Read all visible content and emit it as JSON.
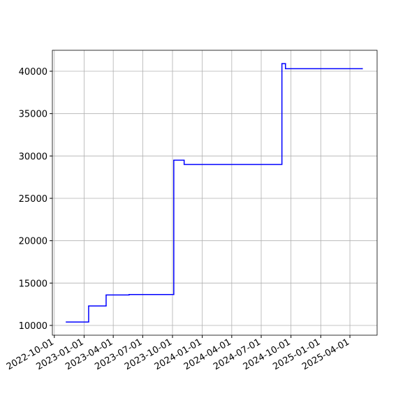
{
  "chart_data": {
    "type": "line",
    "drawstyle": "steps-post",
    "x": [
      "2022-11-07",
      "2023-01-15",
      "2023-03-10",
      "2023-05-20",
      "2023-10-05",
      "2023-11-06",
      "2024-09-03",
      "2024-09-14",
      "2025-05-09"
    ],
    "values": [
      10400,
      12300,
      13600,
      13650,
      29500,
      29000,
      40900,
      40300,
      40300
    ],
    "color": "#0000ff",
    "xlim": [
      "2022-09-25",
      "2025-06-24"
    ],
    "xticks": [
      "2022-10-01",
      "2023-01-01",
      "2023-04-01",
      "2023-07-01",
      "2023-10-01",
      "2024-01-01",
      "2024-04-01",
      "2024-07-01",
      "2024-10-01",
      "2025-01-01",
      "2025-04-01"
    ],
    "ylim": [
      8846,
      42473
    ],
    "yticks": [
      10000,
      15000,
      20000,
      25000,
      30000,
      35000,
      40000
    ],
    "grid": true
  }
}
